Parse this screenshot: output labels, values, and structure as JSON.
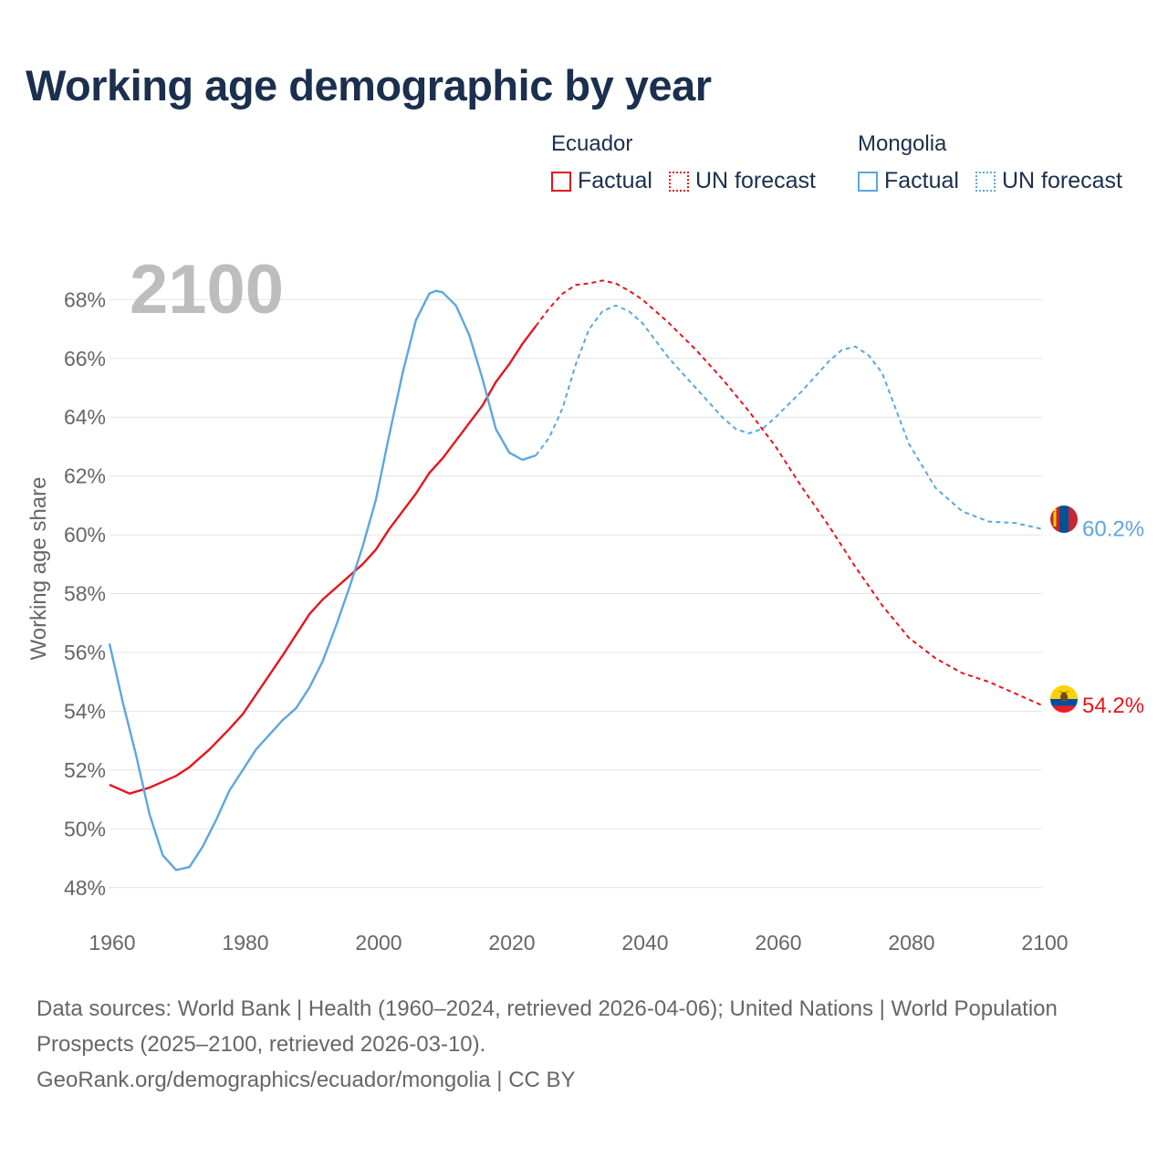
{
  "title": "Working age demographic by year",
  "legend": {
    "groups": [
      {
        "country": "Ecuador",
        "factual_label": "Factual",
        "forecast_label": "UN forecast",
        "color": "#e8141b"
      },
      {
        "country": "Mongolia",
        "factual_label": "Factual",
        "forecast_label": "UN forecast",
        "color": "#5da6e0"
      }
    ]
  },
  "footer": {
    "sources": "Data sources: World Bank | Health (1960–2024, retrieved 2026-04-06); United Nations | World Population Prospects (2025–2100, retrieved 2026-03-10).",
    "credit": "GeoRank.org/demographics/ecuador/mongolia | CC BY"
  },
  "chart_data": {
    "type": "line",
    "title": "Working age demographic by year",
    "xlabel": "",
    "ylabel": "Working age share",
    "year_label": "2100",
    "xlim": [
      1960,
      2100
    ],
    "ylim": [
      47,
      69.5
    ],
    "x_ticks": [
      1960,
      1980,
      2000,
      2020,
      2040,
      2060,
      2080,
      2100
    ],
    "x_tick_labels": [
      "1960",
      "1980",
      "2000",
      "2020",
      "2040",
      "2060",
      "2080",
      "2100"
    ],
    "y_ticks": [
      48,
      50,
      52,
      54,
      56,
      58,
      60,
      62,
      64,
      66,
      68
    ],
    "y_tick_labels": [
      "48%",
      "50%",
      "52%",
      "54%",
      "56%",
      "58%",
      "60%",
      "62%",
      "64%",
      "66%",
      "68%"
    ],
    "grid": true,
    "forecast_start": 2024,
    "series": [
      {
        "name": "Ecuador",
        "color": "#e8141b",
        "end_label": "54.2%",
        "flag": "ecuador",
        "x": [
          1960,
          1963,
          1966,
          1970,
          1972,
          1975,
          1978,
          1980,
          1983,
          1986,
          1988,
          1990,
          1992,
          1995,
          1998,
          2000,
          2002,
          2006,
          2008,
          2010,
          2013,
          2016,
          2018,
          2020,
          2022,
          2024,
          2026,
          2028,
          2030,
          2032,
          2034,
          2036,
          2038,
          2040,
          2044,
          2048,
          2052,
          2056,
          2060,
          2064,
          2068,
          2072,
          2076,
          2080,
          2084,
          2088,
          2092,
          2096,
          2100
        ],
        "y": [
          51.5,
          51.2,
          51.4,
          51.8,
          52.1,
          52.7,
          53.4,
          53.9,
          54.9,
          55.9,
          56.6,
          57.3,
          57.8,
          58.4,
          59.0,
          59.5,
          60.2,
          61.4,
          62.1,
          62.6,
          63.5,
          64.4,
          65.2,
          65.8,
          66.5,
          67.1,
          67.7,
          68.2,
          68.5,
          68.55,
          68.65,
          68.55,
          68.3,
          68.0,
          67.2,
          66.3,
          65.3,
          64.2,
          63.0,
          61.6,
          60.3,
          58.9,
          57.6,
          56.5,
          55.8,
          55.3,
          55.0,
          54.6,
          54.2
        ]
      },
      {
        "name": "Mongolia",
        "color": "#5da6e0",
        "end_label": "60.2%",
        "flag": "mongolia",
        "x": [
          1960,
          1962,
          1964,
          1966,
          1968,
          1970,
          1972,
          1974,
          1976,
          1978,
          1980,
          1982,
          1984,
          1986,
          1988,
          1990,
          1992,
          1994,
          1996,
          1998,
          2000,
          2002,
          2004,
          2006,
          2008,
          2009,
          2010,
          2012,
          2014,
          2016,
          2018,
          2020,
          2022,
          2024,
          2026,
          2028,
          2030,
          2032,
          2034,
          2036,
          2038,
          2040,
          2044,
          2048,
          2052,
          2054,
          2056,
          2058,
          2060,
          2064,
          2066,
          2068,
          2070,
          2072,
          2074,
          2076,
          2080,
          2084,
          2088,
          2092,
          2096,
          2100
        ],
        "y": [
          56.3,
          54.3,
          52.5,
          50.5,
          49.1,
          48.6,
          48.7,
          49.4,
          50.3,
          51.3,
          52.0,
          52.7,
          53.2,
          53.7,
          54.1,
          54.8,
          55.7,
          56.9,
          58.2,
          59.6,
          61.2,
          63.4,
          65.5,
          67.3,
          68.2,
          68.3,
          68.25,
          67.8,
          66.8,
          65.3,
          63.6,
          62.8,
          62.55,
          62.7,
          63.3,
          64.3,
          65.8,
          67.0,
          67.6,
          67.8,
          67.6,
          67.2,
          66.0,
          65.0,
          64.0,
          63.6,
          63.45,
          63.6,
          64.0,
          64.9,
          65.4,
          65.9,
          66.3,
          66.4,
          66.1,
          65.5,
          63.1,
          61.6,
          60.8,
          60.45,
          60.4,
          60.2
        ]
      }
    ]
  }
}
